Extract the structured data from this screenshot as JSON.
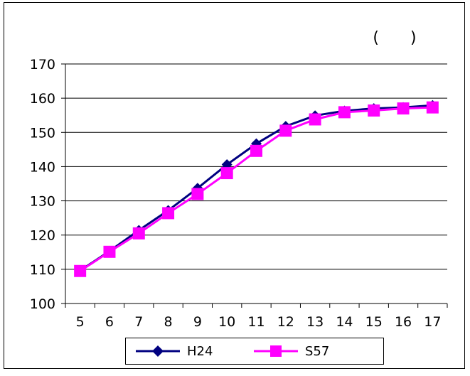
{
  "chart_data": {
    "type": "line",
    "title": "(　　)",
    "x": [
      "5",
      "6",
      "7",
      "8",
      "9",
      "10",
      "11",
      "12",
      "13",
      "14",
      "15",
      "16",
      "17"
    ],
    "ylim": [
      100,
      170
    ],
    "yticks": [
      "100",
      "110",
      "120",
      "130",
      "140",
      "150",
      "160",
      "170"
    ],
    "grid": true,
    "legend_position": "bottom",
    "series": [
      {
        "name": "H24",
        "color": "#000080",
        "marker": "diamond",
        "values": [
          109.6,
          115.3,
          121.4,
          127.2,
          133.7,
          140.6,
          146.7,
          151.8,
          154.9,
          156.3,
          157.0,
          157.3,
          157.9
        ]
      },
      {
        "name": "S57",
        "color": "#ff00ff",
        "marker": "square",
        "values": [
          109.5,
          115.1,
          120.5,
          126.4,
          132.0,
          138.1,
          144.6,
          150.5,
          153.8,
          155.9,
          156.4,
          157.0,
          157.3
        ]
      }
    ]
  }
}
